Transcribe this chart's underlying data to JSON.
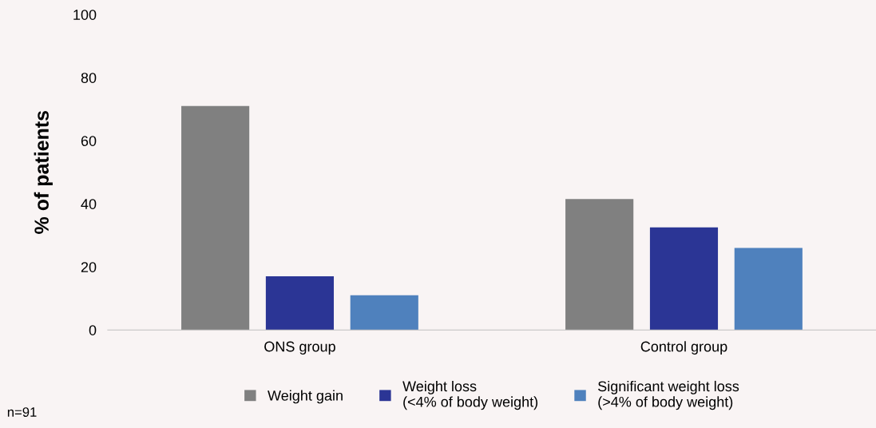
{
  "chart_data": {
    "type": "bar",
    "ylabel": "% of patients",
    "categories": [
      "ONS group",
      "Control group"
    ],
    "series": [
      {
        "name": "Weight gain",
        "color": "#808080",
        "values": [
          71,
          41.5
        ]
      },
      {
        "name": "Weight loss\n(<4% of body weight)",
        "color": "#2b3595",
        "values": [
          17,
          32.5
        ]
      },
      {
        "name": "Significant weight loss\n(>4% of body weight)",
        "color": "#4f81bd",
        "values": [
          11,
          26
        ]
      }
    ],
    "ylim": [
      0,
      100
    ],
    "yticks": [
      0,
      20,
      40,
      60,
      80,
      100
    ],
    "grid": false,
    "legend": "bottom",
    "annotations": [
      "n=91"
    ]
  }
}
